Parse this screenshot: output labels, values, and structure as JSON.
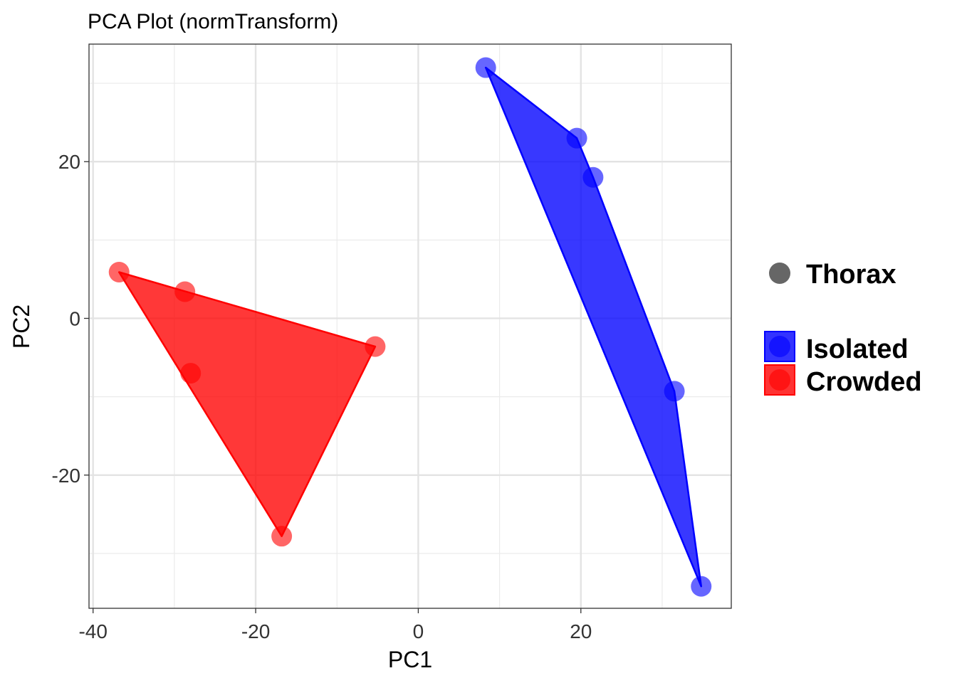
{
  "chart_data": {
    "type": "scatter",
    "title": "PCA Plot (normTransform)",
    "xlabel": "PC1",
    "ylabel": "PC2",
    "xlim": [
      -40.5,
      38.5
    ],
    "ylim": [
      -37,
      35
    ],
    "xticks": [
      -40,
      -20,
      0,
      20
    ],
    "xtick_labels": [
      "-40",
      "-20",
      "0",
      "20"
    ],
    "yticks": [
      -20,
      0,
      20
    ],
    "ytick_labels": [
      "-20",
      "0",
      "20"
    ],
    "grid": true,
    "legend_position": "right",
    "shape_legend": {
      "label": "Thorax",
      "color": "#666666"
    },
    "series": [
      {
        "name": "Isolated",
        "color": "#0000ff",
        "points": [
          {
            "x": 8.3,
            "y": 32.0
          },
          {
            "x": 19.5,
            "y": 23.0
          },
          {
            "x": 21.5,
            "y": 18.0
          },
          {
            "x": 31.5,
            "y": -9.3
          },
          {
            "x": 34.8,
            "y": -34.2
          }
        ],
        "hull": [
          [
            8.3,
            32.0
          ],
          [
            19.5,
            23.0
          ],
          [
            21.5,
            18.0
          ],
          [
            31.5,
            -9.3
          ],
          [
            34.8,
            -34.2
          ]
        ]
      },
      {
        "name": "Crowded",
        "color": "#ff0000",
        "points": [
          {
            "x": -36.8,
            "y": 5.9
          },
          {
            "x": -28.7,
            "y": 3.4
          },
          {
            "x": -28.0,
            "y": -7.0
          },
          {
            "x": -16.8,
            "y": -27.8
          },
          {
            "x": -5.3,
            "y": -3.6
          }
        ],
        "hull": [
          [
            -36.8,
            5.9
          ],
          [
            -5.3,
            -3.6
          ],
          [
            -16.8,
            -27.8
          ]
        ]
      }
    ]
  }
}
